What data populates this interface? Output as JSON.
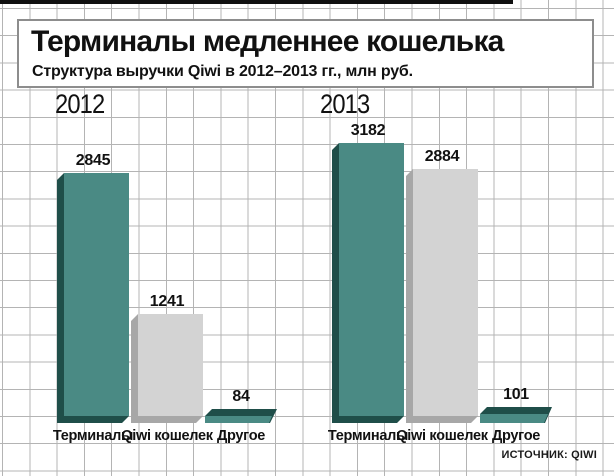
{
  "header": {
    "title": "Терминалы медленнее кошелька",
    "subtitle": "Структура выручки Qiwi в 2012–2013 гг., млн руб."
  },
  "source": "ИСТОЧНИК: QIWI",
  "colors": {
    "teal_front": "#4a8a84",
    "teal_dark": "#1f4e49",
    "gray_front": "#d3d3d3",
    "gray_dark": "#a7a7a7",
    "grid_line": "#b4b4b4",
    "top_rule": "#101010"
  },
  "chart_data": {
    "type": "bar",
    "title": "Терминалы медленнее кошелька",
    "subtitle": "Структура выручки Qiwi в 2012–2013 гг., млн руб.",
    "unit": "млн руб.",
    "grid": true,
    "legend": "none",
    "value_labels": "above bars",
    "groups": [
      {
        "year": "2012",
        "categories": [
          "Терминалы",
          "Qiwi кошелек",
          "Другое"
        ],
        "values": [
          2845,
          1241,
          84
        ],
        "series_colors": [
          "teal",
          "gray",
          "teal"
        ]
      },
      {
        "year": "2013",
        "categories": [
          "Терминалы",
          "Qiwi кошелек",
          "Другое"
        ],
        "values": [
          3182,
          2884,
          101
        ],
        "series_colors": [
          "teal",
          "gray",
          "teal"
        ]
      }
    ],
    "source": "ИСТОЧНИК: QIWI"
  }
}
